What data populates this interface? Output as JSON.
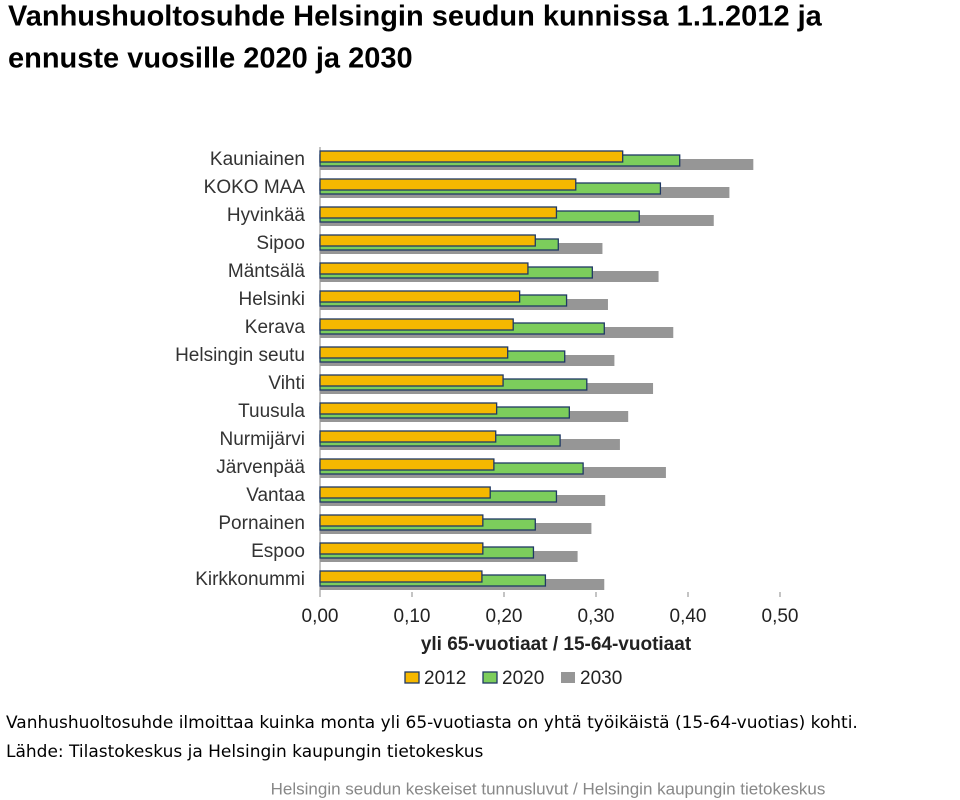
{
  "title": [
    "Vanhushuoltosuhde Helsingin seudun kunnissa 1.1.2012 ja",
    "ennuste vuosille 2020 ja 2030"
  ],
  "chart_data": {
    "type": "bar",
    "orientation": "horizontal",
    "categories": [
      "Kauniainen",
      "KOKO MAA",
      "Hyvinkää",
      "Sipoo",
      "Mäntsälä",
      "Helsinki",
      "Kerava",
      "Helsingin seutu",
      "Vihti",
      "Tuusula",
      "Nurmijärvi",
      "Järvenpää",
      "Vantaa",
      "Pornainen",
      "Espoo",
      "Kirkkonummi"
    ],
    "series": [
      {
        "name": "2012",
        "color": "#f5b800",
        "values": [
          0.329,
          0.278,
          0.257,
          0.234,
          0.226,
          0.217,
          0.21,
          0.204,
          0.199,
          0.192,
          0.191,
          0.189,
          0.185,
          0.177,
          0.177,
          0.176
        ]
      },
      {
        "name": "2020",
        "color": "#7ccd5c",
        "values": [
          0.391,
          0.37,
          0.347,
          0.259,
          0.296,
          0.268,
          0.309,
          0.266,
          0.29,
          0.271,
          0.261,
          0.286,
          0.257,
          0.234,
          0.232,
          0.245
        ]
      },
      {
        "name": "2030",
        "color": "#969696",
        "values": [
          0.471,
          0.445,
          0.428,
          0.307,
          0.368,
          0.313,
          0.384,
          0.32,
          0.362,
          0.335,
          0.326,
          0.376,
          0.31,
          0.295,
          0.28,
          0.309
        ]
      }
    ],
    "xlabel": "yli 65-vuotiaat / 15-64-vuotiaat",
    "xlim": [
      0,
      0.5
    ],
    "xticks": [
      {
        "value": 0,
        "label": "0,00"
      },
      {
        "value": 0.1,
        "label": "0,10"
      },
      {
        "value": 0.2,
        "label": "0,20"
      },
      {
        "value": 0.3,
        "label": "0,30"
      },
      {
        "value": 0.4,
        "label": "0,40"
      },
      {
        "value": 0.5,
        "label": "0,50"
      }
    ],
    "legend": "bottom"
  },
  "notes": [
    "Vanhushuoltosuhde ilmoittaa kuinka monta yli 65-vuotiasta on yhtä työikäistä (15-64-vuotias) kohti.",
    "Lähde: Tilastokeskus ja Helsingin kaupungin tietokeskus"
  ],
  "footer": "Helsingin seudun keskeiset tunnusluvut / Helsingin kaupungin tietokeskus"
}
